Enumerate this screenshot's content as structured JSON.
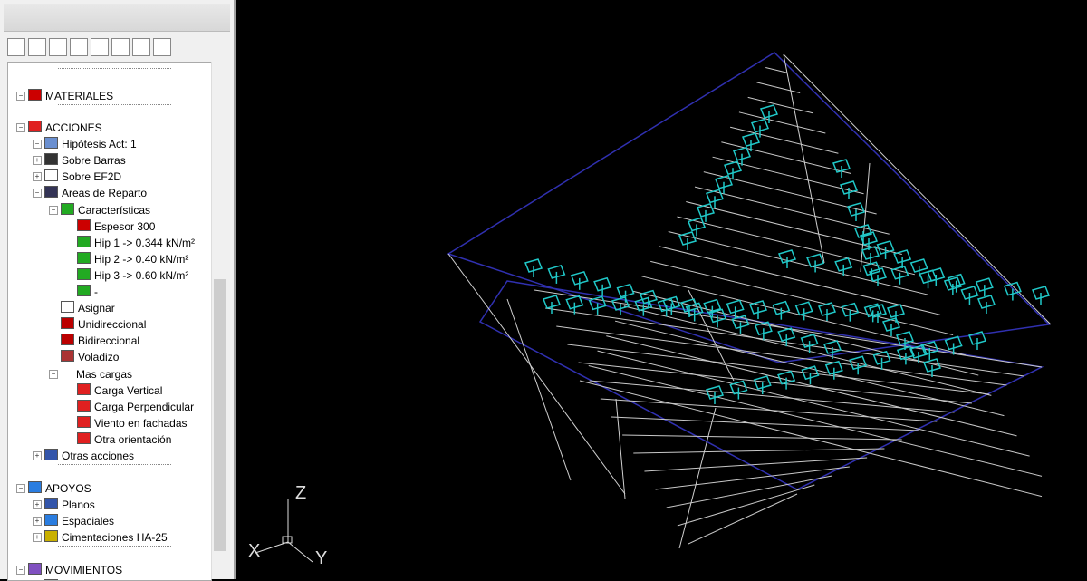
{
  "tree": [
    "MATERIALES",
    "ACCIONES",
    "Hipótesis Act: 1",
    "Sobre Barras",
    "Sobre EF2D",
    "Areas de Reparto",
    "Características",
    "Espesor 300",
    "Hip 1 -> 0.344 kN/m²",
    "Hip 2 -> 0.40 kN/m²",
    "Hip 3 -> 0.60 kN/m²",
    "-",
    "Asignar",
    "Unidireccional",
    "Bidireccional",
    "Voladizo",
    "Mas cargas",
    "Carga Vertical",
    "Carga Perpendicular",
    "Viento en fachadas",
    "Otra orientación",
    "Otras acciones",
    "APOYOS",
    "Planos",
    "Espaciales",
    "Cimentaciones HA-25",
    "MOVIMIENTOS",
    "Control desplazam"
  ],
  "axes": {
    "z": "Z",
    "x": "X",
    "y": "Y"
  }
}
